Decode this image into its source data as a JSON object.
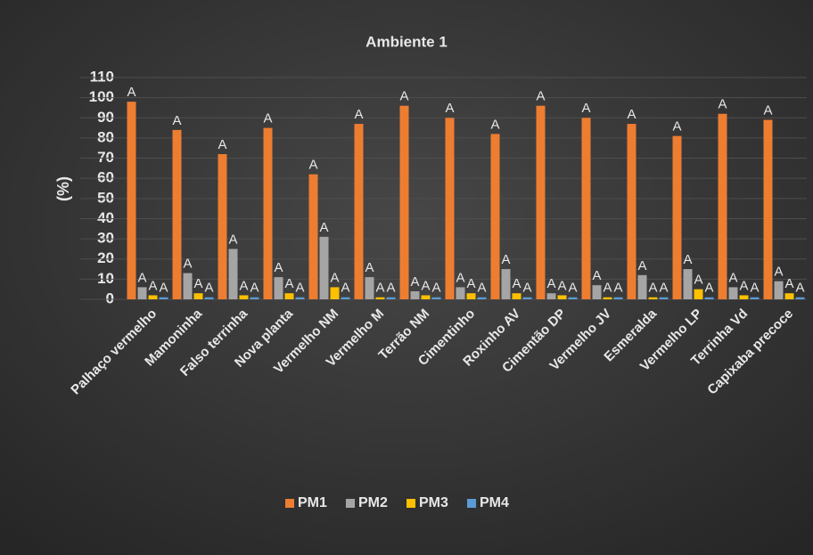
{
  "chart_data": {
    "type": "bar",
    "title": "Ambiente 1",
    "y_label": "(%)",
    "categories": [
      "Palhaço vermelho",
      "Mamoninha",
      "Falso terrinha",
      "Nova planta",
      "Vermelho NM",
      "Vermelho M",
      "Terrão NM",
      "Cimentinho",
      "Roxinho AV",
      "Cimentão DP",
      "Vermelho JV",
      "Esmeralda",
      "Vermelho LP",
      "Terrinha Vd",
      "Capixaba precoce"
    ],
    "series": [
      {
        "name": "PM1",
        "color": "#ed7d31",
        "values": [
          98,
          84,
          72,
          85,
          62,
          87,
          96,
          90,
          82,
          96,
          90,
          87,
          81,
          92,
          89
        ],
        "letters": [
          "A",
          "A",
          "A",
          "A",
          "A",
          "A",
          "A",
          "A",
          "A",
          "A",
          "A",
          "A",
          "A",
          "A",
          "A"
        ]
      },
      {
        "name": "PM2",
        "color": "#a5a5a5",
        "values": [
          6,
          13,
          25,
          11,
          31,
          11,
          4,
          6,
          15,
          3,
          7,
          12,
          15,
          6,
          9
        ],
        "letters": [
          "A",
          "A",
          "A",
          "A",
          "A",
          "A",
          "A",
          "A",
          "A",
          "A",
          "A",
          "A",
          "A",
          "A",
          "A"
        ]
      },
      {
        "name": "PM3",
        "color": "#ffc000",
        "values": [
          2,
          3,
          2,
          3,
          6,
          1,
          2,
          3,
          3,
          2,
          1,
          1,
          5,
          2,
          3
        ],
        "letters": [
          "A",
          "A",
          "A",
          "A",
          "A",
          "A",
          "A",
          "A",
          "A",
          "A",
          "A",
          "A",
          "A",
          "A",
          "A"
        ]
      },
      {
        "name": "PM4",
        "color": "#5b9bd5",
        "values": [
          1,
          1,
          1,
          1,
          1,
          1,
          1,
          1,
          1,
          1,
          1,
          1,
          1,
          1,
          1
        ],
        "letters": [
          "A",
          "A",
          "A",
          "A",
          "A",
          "A",
          "A",
          "A",
          "A",
          "A",
          "A",
          "A",
          "A",
          "A",
          "A"
        ]
      }
    ],
    "ylim": [
      0,
      110
    ],
    "yticks": [
      0,
      10,
      20,
      30,
      40,
      50,
      60,
      70,
      80,
      90,
      100,
      110
    ],
    "grid": true,
    "legend": "bottom"
  }
}
